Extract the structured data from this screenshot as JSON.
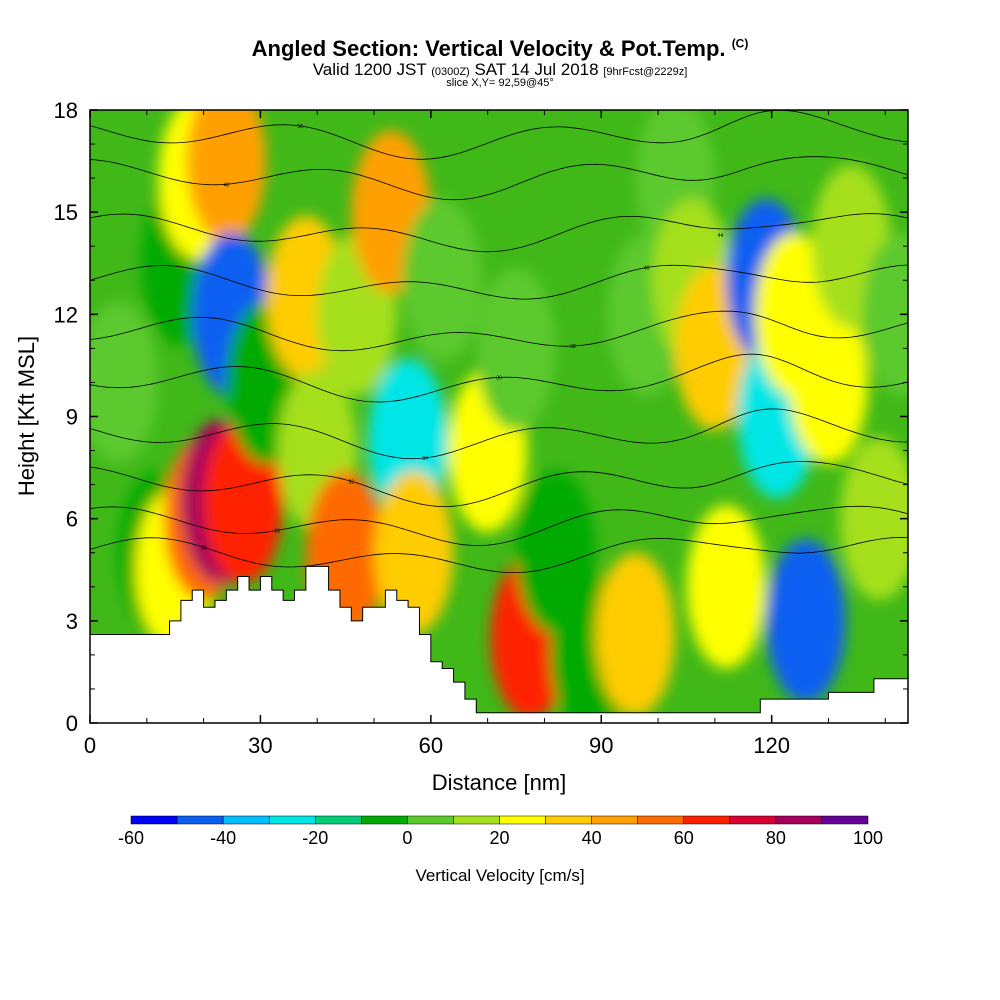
{
  "header": {
    "title_main": "Angled Section: Vertical Velocity & Pot.Temp.",
    "title_mark": "(C)",
    "valid_a": "Valid 1200 JST",
    "valid_b": "(0300Z)",
    "valid_c": "SAT 14 Jul 2018",
    "valid_d": "[9hrFcst@2229z]",
    "slice": "slice X,Y= 92,59@45°"
  },
  "chart_data": {
    "type": "heatmap",
    "xlabel": "Distance [nm]",
    "ylabel": "Height [Kft MSL]",
    "xlim": [
      0,
      144
    ],
    "ylim": [
      0,
      18
    ],
    "x_ticks": [
      "0",
      "30",
      "60",
      "90",
      "120"
    ],
    "y_ticks": [
      "0",
      "3",
      "6",
      "9",
      "12",
      "15",
      "18"
    ],
    "x_tick_values": [
      0,
      30,
      60,
      90,
      120
    ],
    "y_tick_values": [
      0,
      3,
      6,
      9,
      12,
      15,
      18
    ],
    "grid": false,
    "colorbar": {
      "title": "Vertical Velocity [cm/s]",
      "min": -60,
      "max": 100,
      "step": 10,
      "ticks": [
        "-60",
        "-40",
        "-20",
        "0",
        "20",
        "40",
        "60",
        "80",
        "100"
      ],
      "tick_values": [
        -60,
        -40,
        -20,
        0,
        20,
        40,
        60,
        80,
        100
      ],
      "colors": [
        "#0000ff",
        "#0a5ff2",
        "#00bfff",
        "#00e6e6",
        "#00cc77",
        "#00aa00",
        "#5cc92d",
        "#a6e01a",
        "#ffff00",
        "#ffcc00",
        "#ffa000",
        "#ff6a00",
        "#ff2000",
        "#d90033",
        "#a6005c",
        "#660099"
      ]
    },
    "terrain_profile": {
      "x": [
        0,
        10,
        12,
        14,
        16,
        18,
        20,
        22,
        24,
        26,
        28,
        30,
        32,
        34,
        36,
        38,
        40,
        42,
        44,
        46,
        48,
        50,
        52,
        54,
        56,
        58,
        60,
        62,
        64,
        66,
        68,
        70,
        75,
        80,
        90,
        100,
        110,
        114,
        118,
        122,
        126,
        130,
        134,
        138,
        144
      ],
      "height": [
        2.6,
        2.6,
        2.6,
        3.0,
        3.6,
        3.9,
        3.4,
        3.6,
        3.9,
        4.3,
        3.9,
        4.3,
        3.9,
        3.6,
        3.9,
        4.6,
        4.6,
        3.9,
        3.4,
        3.0,
        3.4,
        3.4,
        3.9,
        3.6,
        3.4,
        2.6,
        1.8,
        1.6,
        1.2,
        0.7,
        0.3,
        0.3,
        0.3,
        0.3,
        0.3,
        0.3,
        0.3,
        0.3,
        0.7,
        0.7,
        0.7,
        0.9,
        0.9,
        1.3,
        1.3
      ]
    },
    "velocity_cells": [
      {
        "x": 5,
        "z": 10,
        "w": 0
      },
      {
        "x": 12,
        "z": 5,
        "w": -10
      },
      {
        "x": 15,
        "z": 4.5,
        "w": 25
      },
      {
        "x": 16,
        "z": 13.5,
        "w": -10
      },
      {
        "x": 19,
        "z": 16,
        "w": 25
      },
      {
        "x": 20,
        "z": 6,
        "w": 55
      },
      {
        "x": 23,
        "z": 6.5,
        "w": 85
      },
      {
        "x": 24,
        "z": 16.5,
        "w": 40
      },
      {
        "x": 25,
        "z": 12,
        "w": -45
      },
      {
        "x": 27,
        "z": 6.5,
        "w": 65
      },
      {
        "x": 31,
        "z": 10,
        "w": -10
      },
      {
        "x": 38,
        "z": 12.5,
        "w": 30
      },
      {
        "x": 40,
        "z": 8,
        "w": 10
      },
      {
        "x": 45,
        "z": 5,
        "w": 50
      },
      {
        "x": 47,
        "z": 12,
        "w": 15
      },
      {
        "x": 53,
        "z": 15,
        "w": 42
      },
      {
        "x": 56,
        "z": 8.3,
        "w": -30
      },
      {
        "x": 57,
        "z": 5,
        "w": 30
      },
      {
        "x": 62,
        "z": 13,
        "w": 5
      },
      {
        "x": 70,
        "z": 8,
        "w": 20
      },
      {
        "x": 75,
        "z": 11,
        "w": 0
      },
      {
        "x": 77.5,
        "z": 2.5,
        "w": 65
      },
      {
        "x": 82,
        "z": 5,
        "w": -10
      },
      {
        "x": 88,
        "z": 2,
        "w": -10
      },
      {
        "x": 96,
        "z": 2.6,
        "w": 30
      },
      {
        "x": 98,
        "z": 12,
        "w": 5
      },
      {
        "x": 103,
        "z": 16,
        "w": 5
      },
      {
        "x": 106,
        "z": 13,
        "w": 15
      },
      {
        "x": 110,
        "z": 11,
        "w": 35
      },
      {
        "x": 112,
        "z": 4,
        "w": 20
      },
      {
        "x": 119,
        "z": 13,
        "w": -50
      },
      {
        "x": 121,
        "z": 9,
        "w": -25
      },
      {
        "x": 124,
        "z": 12,
        "w": 25
      },
      {
        "x": 126,
        "z": 3,
        "w": -45
      },
      {
        "x": 130,
        "z": 10,
        "w": 20
      },
      {
        "x": 134,
        "z": 14,
        "w": 15
      },
      {
        "x": 139,
        "z": 6,
        "w": 10
      },
      {
        "x": 143,
        "z": 12,
        "w": 5
      }
    ],
    "isentropes": [
      {
        "label": "30",
        "base": 5.1
      },
      {
        "label": "31",
        "base": 6.0
      },
      {
        "label": "32",
        "base": 7.2
      },
      {
        "label": "34",
        "base": 8.6
      },
      {
        "label": "36",
        "base": 10.2
      },
      {
        "label": "38",
        "base": 11.6
      },
      {
        "label": "40",
        "base": 13.1
      },
      {
        "label": "44",
        "base": 14.6
      },
      {
        "label": "48",
        "base": 16.2
      },
      {
        "label": "50",
        "base": 17.4
      }
    ]
  }
}
